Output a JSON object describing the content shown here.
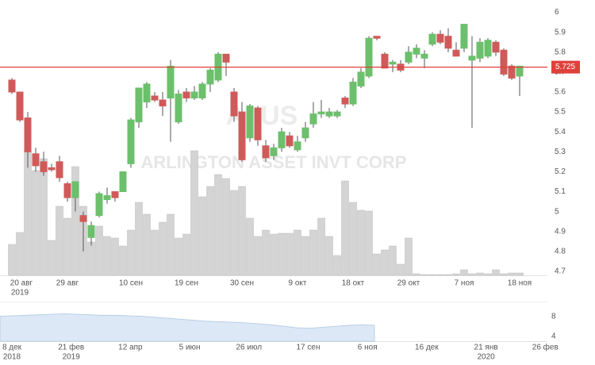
{
  "chart_data": {
    "type": "candlestick",
    "watermark_ticker": "AI.US",
    "watermark_title": "ARLINGTON ASSET INVT CORP",
    "categories": [
      "20 авг",
      null,
      null,
      null,
      null,
      null,
      null,
      "29 авг",
      null,
      null,
      null,
      null,
      null,
      null,
      null,
      "10 сен",
      null,
      null,
      null,
      null,
      null,
      null,
      "19 сен",
      null,
      null,
      null,
      null,
      null,
      null,
      "30 сен",
      null,
      null,
      null,
      null,
      null,
      null,
      "9 окт",
      null,
      null,
      null,
      null,
      null,
      null,
      "18 окт",
      null,
      null,
      null,
      null,
      null,
      null,
      "29 окт",
      null,
      null,
      null,
      null,
      null,
      null,
      "7 ноя",
      null,
      null,
      null,
      null,
      null,
      null,
      "18 ноя"
    ],
    "first_year": "2019",
    "open": [
      5.66,
      5.6,
      5.47,
      5.29,
      5.25,
      5.22,
      5.25,
      5.14,
      5.07,
      4.98,
      4.87,
      4.98,
      5.06,
      5.1,
      5.1,
      5.24,
      5.45,
      5.55,
      5.58,
      5.56,
      5.57,
      5.45,
      5.6,
      5.57,
      5.57,
      5.64,
      5.66,
      5.79,
      5.6,
      5.5,
      5.37,
      5.52,
      5.33,
      5.28,
      5.32,
      5.38,
      5.31,
      5.37,
      5.44,
      5.49,
      5.48,
      5.48,
      5.57,
      5.54,
      5.63,
      5.68,
      5.88,
      5.79,
      5.74,
      5.74,
      5.75,
      5.79,
      5.77,
      5.84,
      5.89,
      5.88,
      5.81,
      5.82,
      5.76,
      5.77,
      5.78,
      5.85,
      5.81,
      5.73,
      5.68
    ],
    "high": [
      5.67,
      5.6,
      5.5,
      5.32,
      5.3,
      5.24,
      5.28,
      5.15,
      5.15,
      5.0,
      4.95,
      5.1,
      5.12,
      5.1,
      5.2,
      5.47,
      5.62,
      5.65,
      5.6,
      5.6,
      5.76,
      5.61,
      5.62,
      5.63,
      5.65,
      5.72,
      5.8,
      5.79,
      5.62,
      5.55,
      5.54,
      5.53,
      5.36,
      5.34,
      5.42,
      5.4,
      5.38,
      5.45,
      5.55,
      5.56,
      5.52,
      5.51,
      5.58,
      5.67,
      5.72,
      5.88,
      5.88,
      5.8,
      5.76,
      5.76,
      5.83,
      5.84,
      5.81,
      5.9,
      5.91,
      5.92,
      5.85,
      5.94,
      5.88,
      5.87,
      5.87,
      5.86,
      5.82,
      5.74,
      5.73
    ],
    "low": [
      5.59,
      5.45,
      5.22,
      5.2,
      5.18,
      5.2,
      5.15,
      5.05,
      5.0,
      4.8,
      4.83,
      4.97,
      5.04,
      5.05,
      5.1,
      5.22,
      5.42,
      5.52,
      5.55,
      5.48,
      5.35,
      5.44,
      5.55,
      5.56,
      5.56,
      5.6,
      5.65,
      5.68,
      5.45,
      5.25,
      5.35,
      5.33,
      5.25,
      5.26,
      5.3,
      5.32,
      5.3,
      5.35,
      5.42,
      5.47,
      5.47,
      5.47,
      5.52,
      5.53,
      5.62,
      5.67,
      5.86,
      5.72,
      5.7,
      5.7,
      5.74,
      5.77,
      5.72,
      5.83,
      5.84,
      5.8,
      5.78,
      5.8,
      5.42,
      5.75,
      5.77,
      5.78,
      5.68,
      5.66,
      5.58
    ],
    "close": [
      5.6,
      5.46,
      5.3,
      5.23,
      5.2,
      5.21,
      5.17,
      5.07,
      5.15,
      4.95,
      4.93,
      5.09,
      5.08,
      5.07,
      5.2,
      5.46,
      5.62,
      5.64,
      5.56,
      5.53,
      5.73,
      5.59,
      5.57,
      5.6,
      5.64,
      5.71,
      5.79,
      5.75,
      5.48,
      5.26,
      5.53,
      5.36,
      5.27,
      5.32,
      5.4,
      5.33,
      5.35,
      5.42,
      5.49,
      5.5,
      5.5,
      5.5,
      5.54,
      5.65,
      5.7,
      5.87,
      5.87,
      5.72,
      5.75,
      5.71,
      5.8,
      5.82,
      5.79,
      5.89,
      5.85,
      5.82,
      5.78,
      5.94,
      5.78,
      5.85,
      5.86,
      5.8,
      5.69,
      5.67,
      5.73
    ],
    "volume": [
      39,
      54,
      157,
      132,
      147,
      44,
      87,
      72,
      137,
      87,
      42,
      62,
      49,
      47,
      37,
      57,
      92,
      77,
      57,
      67,
      77,
      47,
      52,
      157,
      99,
      112,
      127,
      122,
      107,
      112,
      72,
      49,
      57,
      52,
      53,
      53,
      57,
      49,
      57,
      72,
      49,
      25,
      119,
      92,
      82,
      81,
      27,
      32,
      37,
      14,
      47,
      2,
      1,
      1,
      1,
      1,
      2,
      7,
      2,
      3,
      2,
      7,
      2,
      3,
      3
    ],
    "up_color": "#6cc06c",
    "down_color": "#d05a5a",
    "volume_color": "#d4d4d4",
    "ylim": [
      4.68,
      6.03
    ],
    "yticks": [
      4.7,
      4.8,
      4.9,
      5,
      5.1,
      5.2,
      5.3,
      5.4,
      5.5,
      5.6,
      5.7,
      5.8,
      5.9,
      6
    ],
    "current_price": 5.725,
    "current_price_color": "#e0403a",
    "navigator": {
      "type": "area",
      "values": [
        8.0,
        8.1,
        8.2,
        8.3,
        8.4,
        8.5,
        8.4,
        8.3,
        8.2,
        8.2,
        8.1,
        8.0,
        7.8,
        7.6,
        7.4,
        7.2,
        7.0,
        6.9,
        6.8,
        6.7,
        6.5,
        6.3,
        6.0,
        5.7,
        5.6,
        5.8,
        6.0,
        6.2,
        6.3,
        6.2
      ],
      "ylim": [
        3,
        10.5
      ],
      "yticks": [
        4,
        8
      ],
      "x_labels": [
        "8 дек",
        "21 фев",
        "12 апр",
        "5 июн",
        "26 июл",
        "17 сен",
        "6 ноя",
        "16 дек",
        "21 янв",
        "26 фев"
      ],
      "x_label_years": [
        "2018",
        "2019",
        null,
        null,
        null,
        null,
        null,
        null,
        "2020",
        null
      ],
      "color": "#dce8f5"
    }
  }
}
